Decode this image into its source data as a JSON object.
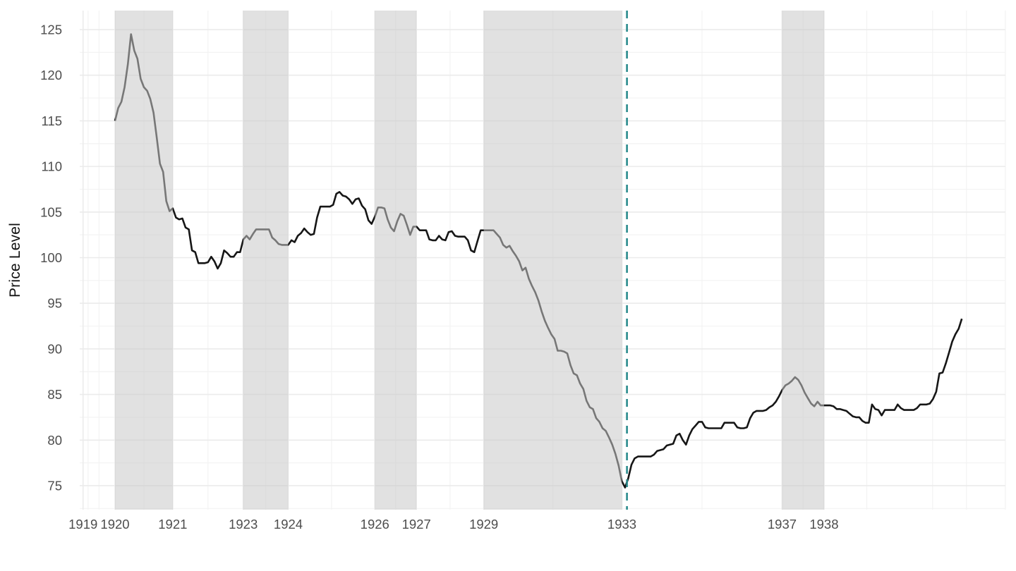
{
  "chart_data": {
    "type": "line",
    "title": "",
    "xlabel": "",
    "ylabel": "Price Level",
    "grid": "on",
    "legend": "none",
    "colors": {
      "line": "#161616",
      "recession_band": "#c9c9c9",
      "recession_band_alpha": 0.55,
      "event_vline": "#2a8b8d",
      "grid_major": "#ebebeb",
      "grid_minor": "#f3f3f3",
      "tick_text": "#4d4d4d",
      "axis_title_text": "#111111",
      "background": "#ffffff"
    },
    "y_axis": {
      "ticks": [
        75,
        80,
        85,
        90,
        95,
        100,
        105,
        110,
        115,
        120,
        125
      ],
      "minor_ticks": [
        72.5,
        77.5,
        82.5,
        87.5,
        92.5,
        97.5,
        102.5,
        107.5,
        112.5,
        117.5,
        122.5
      ],
      "domain": [
        72.37,
        127.09
      ]
    },
    "x_axis": {
      "domain": [
        1919.0835,
        1943.132
      ],
      "breaks": [
        {
          "label": "1919",
          "year": 1919.17
        },
        {
          "label": "1920",
          "year": 1920.0
        },
        {
          "label": "1921",
          "year": 1921.5
        },
        {
          "label": "1923",
          "year": 1923.33
        },
        {
          "label": "1924",
          "year": 1924.5
        },
        {
          "label": "1926",
          "year": 1926.75
        },
        {
          "label": "1927",
          "year": 1927.83
        },
        {
          "label": "1929",
          "year": 1929.58
        },
        {
          "label": "1933",
          "year": 1933.17
        },
        {
          "label": "1937",
          "year": 1937.33
        },
        {
          "label": "1938",
          "year": 1938.42
        }
      ],
      "minor_break_years": [
        1919.3,
        1919.585,
        1920.75,
        1922.415,
        1923.915,
        1925.625,
        1927.29,
        1928.705,
        1931.375,
        1935.25,
        1937.875,
        1939.53,
        1941.24,
        1942.12,
        1943.13
      ]
    },
    "recession_bands_years": [
      [
        1920.0,
        1921.5
      ],
      [
        1923.33,
        1924.5
      ],
      [
        1926.75,
        1927.83
      ],
      [
        1929.58,
        1933.17
      ],
      [
        1937.33,
        1938.42
      ]
    ],
    "event_vline_year": 1933.3,
    "series": {
      "name": "Price Level",
      "start_year": 1920,
      "frequency": "monthly",
      "values": [
        115.0,
        116.4,
        117.1,
        118.7,
        121.2,
        124.5,
        122.7,
        121.8,
        119.6,
        118.7,
        118.3,
        117.4,
        115.9,
        113.2,
        110.3,
        109.4,
        106.2,
        105.1,
        105.4,
        104.4,
        104.2,
        104.3,
        103.3,
        103.1,
        100.8,
        100.6,
        99.4,
        99.4,
        99.4,
        99.5,
        100.1,
        99.6,
        98.8,
        99.4,
        100.8,
        100.5,
        100.1,
        100.1,
        100.6,
        100.6,
        102.0,
        102.4,
        102.0,
        102.6,
        103.1,
        103.1,
        103.1,
        103.1,
        103.1,
        102.2,
        101.9,
        101.5,
        101.4,
        101.4,
        101.4,
        101.9,
        101.7,
        102.4,
        102.7,
        103.2,
        102.8,
        102.5,
        102.6,
        104.4,
        105.6,
        105.6,
        105.6,
        105.6,
        105.8,
        107.0,
        107.2,
        106.8,
        106.7,
        106.4,
        105.9,
        106.4,
        106.5,
        105.7,
        105.3,
        104.1,
        103.7,
        104.5,
        105.5,
        105.5,
        105.4,
        104.2,
        103.3,
        102.9,
        104.0,
        104.8,
        104.6,
        103.6,
        102.5,
        103.4,
        103.4,
        103.0,
        103.0,
        103.0,
        102.0,
        101.9,
        101.9,
        102.4,
        102.0,
        101.9,
        102.8,
        102.9,
        102.4,
        102.3,
        102.3,
        102.3,
        101.9,
        100.8,
        100.6,
        101.8,
        103.0,
        103.0,
        103.0,
        103.0,
        103.0,
        102.6,
        102.2,
        101.4,
        101.1,
        101.3,
        100.7,
        100.2,
        99.6,
        98.6,
        98.9,
        97.7,
        96.9,
        96.2,
        95.3,
        94.1,
        93.1,
        92.3,
        91.6,
        91.1,
        89.8,
        89.8,
        89.7,
        89.5,
        88.2,
        87.3,
        87.1,
        86.2,
        85.6,
        84.3,
        83.6,
        83.4,
        82.4,
        82.0,
        81.3,
        81.0,
        80.3,
        79.5,
        78.5,
        77.2,
        75.5,
        74.8,
        75.8,
        77.3,
        78.0,
        78.2,
        78.2,
        78.2,
        78.2,
        78.2,
        78.4,
        78.8,
        78.9,
        79.0,
        79.4,
        79.5,
        79.6,
        80.5,
        80.7,
        80.0,
        79.5,
        80.5,
        81.2,
        81.6,
        82.0,
        82.0,
        81.4,
        81.3,
        81.3,
        81.3,
        81.3,
        81.3,
        81.9,
        81.9,
        81.9,
        81.9,
        81.4,
        81.3,
        81.3,
        81.4,
        82.4,
        83.0,
        83.2,
        83.2,
        83.2,
        83.3,
        83.6,
        83.8,
        84.2,
        84.8,
        85.5,
        86.0,
        86.2,
        86.5,
        86.9,
        86.6,
        86.0,
        85.2,
        84.6,
        84.0,
        83.7,
        84.2,
        83.8,
        83.8,
        83.8,
        83.8,
        83.7,
        83.4,
        83.4,
        83.3,
        83.2,
        82.9,
        82.6,
        82.5,
        82.5,
        82.1,
        81.9,
        81.9,
        83.9,
        83.4,
        83.3,
        82.7,
        83.3,
        83.3,
        83.3,
        83.3,
        83.9,
        83.5,
        83.3,
        83.3,
        83.3,
        83.3,
        83.5,
        83.9,
        83.9,
        83.9,
        84.0,
        84.5,
        85.3,
        87.3,
        87.4,
        88.4,
        89.6,
        90.8,
        91.6,
        92.2,
        93.3
      ]
    }
  }
}
